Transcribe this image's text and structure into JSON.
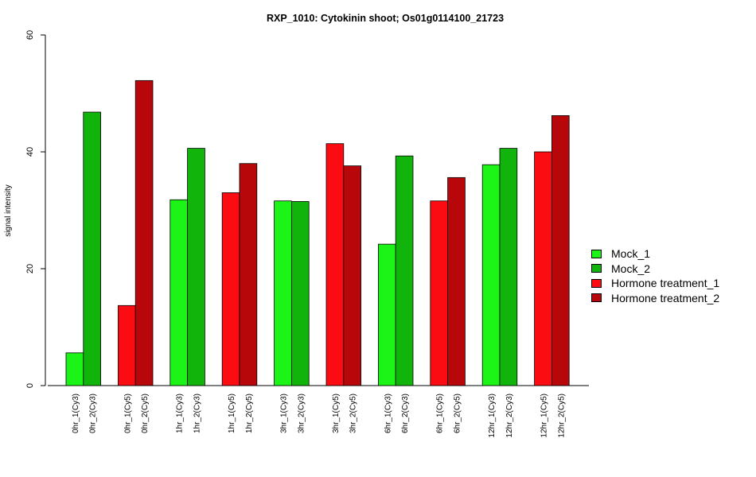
{
  "chart_data": {
    "type": "bar",
    "title": "RXP_1010: Cytokinin shoot; Os01g0114100_21723",
    "xlabel": "",
    "ylabel": "signal intensity",
    "ylim": [
      0,
      60
    ],
    "yticks": [
      0,
      20,
      40,
      60
    ],
    "grid": false,
    "legend_position": "right",
    "categories": [
      "0hr_1(Cy3)",
      "0hr_2(Cy3)",
      "0hr_1(Cy5)",
      "0hr_2(Cy5)",
      "1hr_1(Cy3)",
      "1hr_2(Cy3)",
      "1hr_1(Cy5)",
      "1hr_2(Cy5)",
      "3hr_1(Cy3)",
      "3hr_2(Cy3)",
      "3hr_1(Cy5)",
      "3hr_2(Cy5)",
      "6hr_1(Cy3)",
      "6hr_2(Cy3)",
      "6hr_1(Cy5)",
      "6hr_2(Cy5)",
      "12hr_1(Cy3)",
      "12hr_2(Cy3)",
      "12hr_1(Cy5)",
      "12hr_2(Cy5)"
    ],
    "values": [
      5.6,
      46.8,
      13.7,
      52.2,
      31.8,
      40.6,
      33.0,
      38.0,
      31.6,
      31.5,
      41.4,
      37.6,
      24.2,
      39.3,
      31.6,
      35.6,
      37.8,
      40.6,
      40.0,
      46.2
    ],
    "bar_series": [
      0,
      1,
      2,
      3,
      0,
      1,
      2,
      3,
      0,
      1,
      2,
      3,
      0,
      1,
      2,
      3,
      0,
      1,
      2,
      3
    ],
    "series": [
      {
        "name": "Mock_1",
        "color": "#1cf316"
      },
      {
        "name": "Mock_2",
        "color": "#10b40a"
      },
      {
        "name": "Hormone treatment_1",
        "color": "#fa0c12"
      },
      {
        "name": "Hormone treatment_2",
        "color": "#b8070b"
      }
    ]
  }
}
